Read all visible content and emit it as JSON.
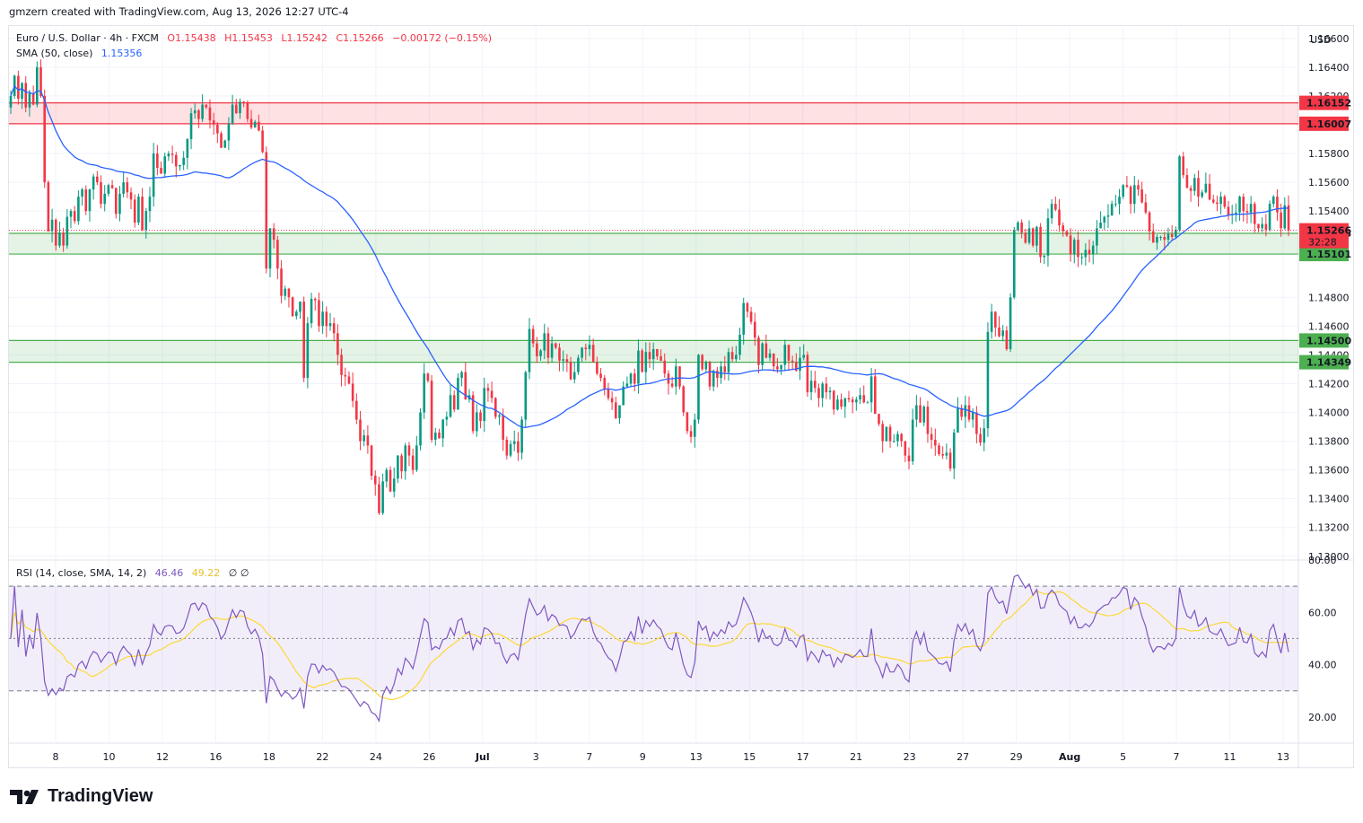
{
  "header": {
    "credit": "gmzern created with TradingView.com, Aug 13, 2026 12:27 UTC-4"
  },
  "legend": {
    "symbol": "Euro / U.S. Dollar · 4h · FXCM",
    "o": "O1.15438",
    "h": "H1.15453",
    "l": "L1.15242",
    "c": "C1.15266",
    "change": "−0.00172 (−0.15%)",
    "sma_label": "SMA (50, close)",
    "sma_value": "1.15356",
    "rsi_label": "RSI (14, close, SMA, 14, 2)",
    "rsi_value": "46.46",
    "rsi_ma_value": "49.22",
    "rsi_extra": "∅ ∅"
  },
  "currency": "USD",
  "brand": "TradingView",
  "colors": {
    "up": "#089981",
    "down": "#f23645",
    "sma": "#2962ff",
    "rsi": "#7e57c2",
    "rsi_ma": "#fdd835",
    "zone_red": "#f23645",
    "zone_green": "#4caf50"
  },
  "chart_data": [
    {
      "type": "candlestick",
      "title": "Euro / U.S. Dollar · 4h · FXCM",
      "ylim": [
        1.1298,
        1.1668
      ],
      "y_ticks": [
        "1.16600",
        "1.16400",
        "1.16200",
        "1.15800",
        "1.15600",
        "1.15400",
        "1.14800",
        "1.14600",
        "1.14400",
        "1.14200",
        "1.14000",
        "1.13800",
        "1.13600",
        "1.13400",
        "1.13200",
        "1.13000"
      ],
      "x_ticks": [
        "8",
        "10",
        "12",
        "16",
        "18",
        "22",
        "24",
        "26",
        "Jul",
        "3",
        "7",
        "9",
        "13",
        "15",
        "17",
        "21",
        "23",
        "27",
        "29",
        "Aug",
        "5",
        "7",
        "11",
        "13"
      ],
      "last_close": 1.15266,
      "countdown": "32:28",
      "zones": [
        {
          "top": 1.16152,
          "bottom": 1.16007,
          "color": "red",
          "labels": [
            "1.16152",
            "1.16007"
          ]
        },
        {
          "top": 1.15245,
          "bottom": 1.15101,
          "color": "green",
          "labels": [
            "1.15245",
            "1.15101"
          ]
        },
        {
          "top": 1.145,
          "bottom": 1.14349,
          "color": "green",
          "labels": [
            "1.14500",
            "1.14349"
          ]
        }
      ],
      "closes": [
        1.162,
        1.1634,
        1.1618,
        1.1629,
        1.1612,
        1.1622,
        1.1614,
        1.164,
        1.162,
        1.156,
        1.1526,
        1.1534,
        1.1516,
        1.1525,
        1.1516,
        1.1536,
        1.154,
        1.1533,
        1.155,
        1.1555,
        1.154,
        1.1555,
        1.1564,
        1.156,
        1.1545,
        1.1552,
        1.1558,
        1.1556,
        1.1538,
        1.1552,
        1.156,
        1.1553,
        1.1548,
        1.1532,
        1.155,
        1.1527,
        1.154,
        1.155,
        1.158,
        1.157,
        1.1566,
        1.1578,
        1.158,
        1.1579,
        1.1571,
        1.1572,
        1.1577,
        1.159,
        1.1608,
        1.161,
        1.1604,
        1.1614,
        1.1612,
        1.1603,
        1.16,
        1.1594,
        1.1584,
        1.1589,
        1.1601,
        1.1614,
        1.1608,
        1.1616,
        1.1615,
        1.1604,
        1.1598,
        1.1602,
        1.1596,
        1.1581,
        1.15,
        1.1528,
        1.152,
        1.15,
        1.1481,
        1.1486,
        1.148,
        1.1467,
        1.147,
        1.1477,
        1.1424,
        1.1462,
        1.1479,
        1.1478,
        1.146,
        1.147,
        1.146,
        1.1462,
        1.1455,
        1.144,
        1.1426,
        1.1425,
        1.142,
        1.1408,
        1.1395,
        1.138,
        1.1384,
        1.1377,
        1.1356,
        1.135,
        1.133,
        1.1352,
        1.136,
        1.1345,
        1.1354,
        1.137,
        1.1359,
        1.1377,
        1.137,
        1.136,
        1.1377,
        1.14,
        1.1427,
        1.1422,
        1.1381,
        1.1386,
        1.1382,
        1.1395,
        1.1397,
        1.1412,
        1.1402,
        1.1424,
        1.1428,
        1.1409,
        1.1412,
        1.1387,
        1.14,
        1.1394,
        1.1417,
        1.1415,
        1.141,
        1.1397,
        1.1398,
        1.1381,
        1.137,
        1.1378,
        1.138,
        1.1372,
        1.1395,
        1.1428,
        1.1458,
        1.1448,
        1.1439,
        1.1443,
        1.1455,
        1.1438,
        1.1448,
        1.1445,
        1.1436,
        1.1437,
        1.1435,
        1.1423,
        1.1428,
        1.1438,
        1.1445,
        1.1444,
        1.1447,
        1.1435,
        1.1427,
        1.1424,
        1.1416,
        1.141,
        1.1407,
        1.1396,
        1.1405,
        1.1418,
        1.142,
        1.1427,
        1.142,
        1.1443,
        1.1428,
        1.1442,
        1.1437,
        1.1444,
        1.1439,
        1.1436,
        1.1427,
        1.142,
        1.1418,
        1.1432,
        1.1418,
        1.14,
        1.1387,
        1.1383,
        1.1395,
        1.144,
        1.143,
        1.1435,
        1.1418,
        1.1429,
        1.1424,
        1.1432,
        1.1428,
        1.1442,
        1.1437,
        1.144,
        1.1454,
        1.1476,
        1.147,
        1.1463,
        1.1452,
        1.1433,
        1.1448,
        1.1438,
        1.1441,
        1.1432,
        1.143,
        1.1433,
        1.1447,
        1.1436,
        1.1435,
        1.1429,
        1.1438,
        1.144,
        1.1414,
        1.1422,
        1.1417,
        1.141,
        1.142,
        1.1414,
        1.1415,
        1.1402,
        1.1409,
        1.1404,
        1.141,
        1.1409,
        1.1407,
        1.1409,
        1.1412,
        1.1407,
        1.1407,
        1.1425,
        1.1399,
        1.1392,
        1.138,
        1.139,
        1.138,
        1.138,
        1.1385,
        1.138,
        1.137,
        1.1366,
        1.1395,
        1.1405,
        1.1393,
        1.1404,
        1.1385,
        1.1381,
        1.1377,
        1.1371,
        1.137,
        1.1372,
        1.1361,
        1.1386,
        1.1403,
        1.1397,
        1.1405,
        1.1395,
        1.14,
        1.1385,
        1.1379,
        1.1389,
        1.1456,
        1.147,
        1.1459,
        1.1453,
        1.1457,
        1.1444,
        1.148,
        1.1527,
        1.1532,
        1.1525,
        1.1518,
        1.1528,
        1.1516,
        1.1529,
        1.1508,
        1.1509,
        1.1535,
        1.1545,
        1.1541,
        1.153,
        1.1526,
        1.1523,
        1.151,
        1.152,
        1.1508,
        1.1508,
        1.1513,
        1.151,
        1.1516,
        1.1528,
        1.1532,
        1.1536,
        1.1537,
        1.1545,
        1.1545,
        1.155,
        1.1558,
        1.1557,
        1.1545,
        1.1558,
        1.1555,
        1.1546,
        1.1539,
        1.1526,
        1.1518,
        1.1522,
        1.1522,
        1.152,
        1.1524,
        1.1522,
        1.1527,
        1.1578,
        1.1565,
        1.1556,
        1.1554,
        1.1563,
        1.155,
        1.1553,
        1.1559,
        1.1548,
        1.1546,
        1.1545,
        1.155,
        1.1543,
        1.1537,
        1.1538,
        1.1539,
        1.155,
        1.154,
        1.1539,
        1.1545,
        1.1531,
        1.1528,
        1.1531,
        1.1527,
        1.1545,
        1.155,
        1.1539,
        1.1528,
        1.1544,
        1.15266
      ],
      "sma": {
        "name": "SMA (50, close)",
        "last": 1.15356
      },
      "panel": {
        "rsi_range": [
          10,
          80
        ],
        "rsi_ticks": [
          "80.00",
          "60.00",
          "40.00",
          "20.00"
        ],
        "bands": [
          30,
          50,
          70
        ]
      }
    }
  ]
}
